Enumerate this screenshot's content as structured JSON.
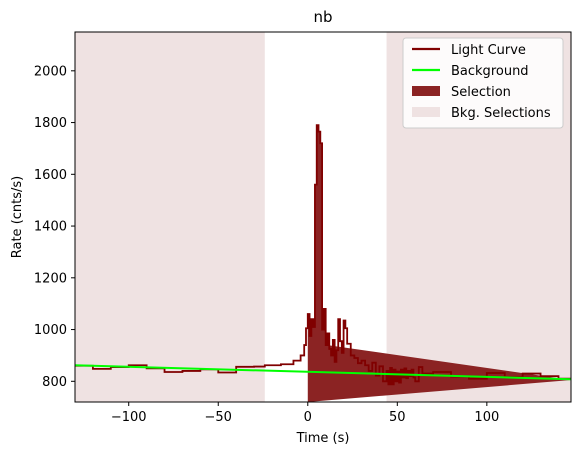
{
  "chart_data": {
    "type": "line",
    "title": "nb",
    "xlabel": "Time (s)",
    "ylabel": "Rate (cnts/s)",
    "xlim": [
      -130,
      147
    ],
    "ylim": [
      720,
      2150
    ],
    "xticks": [
      -100,
      -50,
      0,
      50,
      100
    ],
    "yticks": [
      800,
      1000,
      1200,
      1400,
      1600,
      1800,
      2000
    ],
    "legend_position": "top-right",
    "colors": {
      "light_curve": "#800000",
      "background": "#00ff00",
      "selection": "#8b2323",
      "bkg_selection": "#efe2e2"
    },
    "legend": [
      {
        "label": "Light Curve",
        "kind": "line",
        "color": "#800000"
      },
      {
        "label": "Background",
        "kind": "line",
        "color": "#00ff00"
      },
      {
        "label": "Selection",
        "kind": "patch",
        "color": "#8b2323"
      },
      {
        "label": "Bkg. Selections",
        "kind": "patch",
        "color": "#efe2e2"
      }
    ],
    "background_line": {
      "x": [
        -130,
        147
      ],
      "y": [
        862,
        808
      ]
    },
    "selection": [
      0,
      11
    ],
    "bkg_selections": [
      [
        -130,
        -24
      ],
      [
        44,
        147
      ]
    ],
    "light_curve": {
      "edges": [
        -130,
        -120,
        -110,
        -100,
        -90,
        -80,
        -70,
        -60,
        -50,
        -40,
        -30,
        -24,
        -15,
        -8,
        -4,
        -2,
        -1,
        0,
        1,
        2,
        3,
        4,
        5,
        6,
        7,
        8,
        9,
        10,
        11,
        12,
        13,
        14,
        15,
        16,
        17,
        18,
        19,
        20,
        21,
        22,
        24,
        26,
        28,
        30,
        32,
        34,
        36,
        38,
        40,
        42,
        44,
        45,
        46,
        47,
        48,
        49,
        50,
        51,
        52,
        53,
        54,
        55,
        56,
        57,
        58,
        59,
        60,
        62,
        64,
        70,
        80,
        90,
        100,
        110,
        120,
        130,
        140,
        147
      ],
      "values": [
        860,
        848,
        855,
        862,
        850,
        836,
        840,
        846,
        834,
        856,
        857,
        862,
        866,
        880,
        900,
        940,
        1005,
        1060,
        975,
        1040,
        1010,
        1560,
        1790,
        1765,
        1720,
        1000,
        1080,
        940,
        985,
        925,
        900,
        960,
        875,
        920,
        1040,
        955,
        910,
        1035,
        1005,
        945,
        900,
        890,
        870,
        880,
        862,
        840,
        872,
        822,
        858,
        800,
        840,
        788,
        852,
        788,
        845,
        800,
        838,
        795,
        845,
        815,
        850,
        812,
        840,
        820,
        845,
        815,
        800,
        855,
        830,
        836,
        818,
        810,
        832,
        816,
        830,
        820,
        810,
        805
      ]
    }
  }
}
